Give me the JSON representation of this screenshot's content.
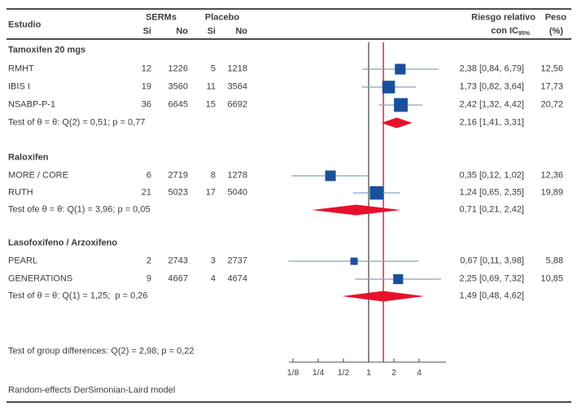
{
  "header": {
    "estudio": "Estudio",
    "serms": "SERMs",
    "placebo": "Placebo",
    "si": "Si",
    "no": "No",
    "rr_line1": "Riesgo relativo",
    "rr_line2": "con IC",
    "rr_sub": "95%",
    "peso_line1": "Peso",
    "peso_line2": "(%)"
  },
  "footer": {
    "group_diff": "Test of group differences: Q(2) = 2,98; p = 0,22",
    "model": "Random-effects DerSimonian-Laird model"
  },
  "colors": {
    "square": "#1a4f9c",
    "ci_line": "#8aa0bf",
    "diamond": "#e8112d",
    "reference_line": "#4d4d4d",
    "overall_line": "#e83344",
    "rule": "#4d4d4d",
    "text": "#3d3d3d"
  },
  "chart_data": {
    "type": "forest",
    "x_scale": "log2",
    "x_ticks": {
      "labels": [
        "1/8",
        "1/4",
        "1/2",
        "1",
        "2",
        "4"
      ],
      "values": [
        0.125,
        0.25,
        0.5,
        1,
        2,
        4
      ]
    },
    "reference_line_value": 1,
    "overall_line_value": 1.5,
    "effect_label": "Riesgo relativo con IC 95%",
    "groups": [
      {
        "label": "Tamoxifen 20 mgs",
        "studies": [
          {
            "name": "RMHT",
            "serms_si": 12,
            "serms_no": 1226,
            "placebo_si": 5,
            "placebo_no": 1218,
            "rr": 2.38,
            "ci_low": 0.84,
            "ci_high": 6.79,
            "weight": 12.56,
            "effect_text": "2,38 [0,84, 6,79]",
            "weight_text": "12,56"
          },
          {
            "name": "IBIS I",
            "serms_si": 19,
            "serms_no": 3560,
            "placebo_si": 11,
            "placebo_no": 3564,
            "rr": 1.73,
            "ci_low": 0.82,
            "ci_high": 3.64,
            "weight": 17.73,
            "effect_text": "1,73 [0,82, 3,64]",
            "weight_text": "17,73"
          },
          {
            "name": "NSABP-P-1",
            "serms_si": 36,
            "serms_no": 6645,
            "placebo_si": 15,
            "placebo_no": 6692,
            "rr": 2.42,
            "ci_low": 1.32,
            "ci_high": 4.42,
            "weight": 20.72,
            "effect_text": "2,42 [1,32, 4,42]",
            "weight_text": "20,72"
          }
        ],
        "test_text": "Test of θ = θ: Q(2) = 0,51; p = 0,77",
        "pooled": {
          "rr": 2.16,
          "ci_low": 1.41,
          "ci_high": 3.31,
          "effect_text": "2,16 [1,41, 3,31]"
        }
      },
      {
        "label": "Raloxifen",
        "studies": [
          {
            "name": "MORE / CORE",
            "serms_si": 6,
            "serms_no": 2719,
            "placebo_si": 8,
            "placebo_no": 1278,
            "rr": 0.35,
            "ci_low": 0.12,
            "ci_high": 1.02,
            "weight": 12.36,
            "effect_text": "0,35 [0,12, 1,02]",
            "weight_text": "12,36"
          },
          {
            "name": "RUTH",
            "serms_si": 21,
            "serms_no": 5023,
            "placebo_si": 17,
            "placebo_no": 5040,
            "rr": 1.24,
            "ci_low": 0.65,
            "ci_high": 2.35,
            "weight": 19.89,
            "effect_text": "1,24 [0,65, 2,35]",
            "weight_text": "19,89"
          }
        ],
        "test_text": "Test ofe θ = θ: Q(1) = 3,96; p = 0,05",
        "pooled": {
          "rr": 0.71,
          "ci_low": 0.21,
          "ci_high": 2.42,
          "effect_text": "0,71 [0,21, 2,42]"
        }
      },
      {
        "label": "Lasofoxifeno / Arzoxifeno",
        "studies": [
          {
            "name": "PEARL",
            "serms_si": 2,
            "serms_no": 2743,
            "placebo_si": 3,
            "placebo_no": 2737,
            "rr": 0.67,
            "ci_low": 0.11,
            "ci_high": 3.98,
            "weight": 5.88,
            "effect_text": "0,67 [0,11, 3,98]",
            "weight_text": "5,88"
          },
          {
            "name": "GENERATIONS",
            "serms_si": 9,
            "serms_no": 4667,
            "placebo_si": 4,
            "placebo_no": 4674,
            "rr": 2.25,
            "ci_low": 0.69,
            "ci_high": 7.32,
            "weight": 10.85,
            "effect_text": "2,25 [0,69, 7,32]",
            "weight_text": "10,85"
          }
        ],
        "test_text": "Test of θ = θ: Q(1) = 1,25;  p = 0,26",
        "pooled": {
          "rr": 1.49,
          "ci_low": 0.48,
          "ci_high": 4.62,
          "effect_text": "1,49 [0,48, 4,62]"
        }
      }
    ]
  }
}
